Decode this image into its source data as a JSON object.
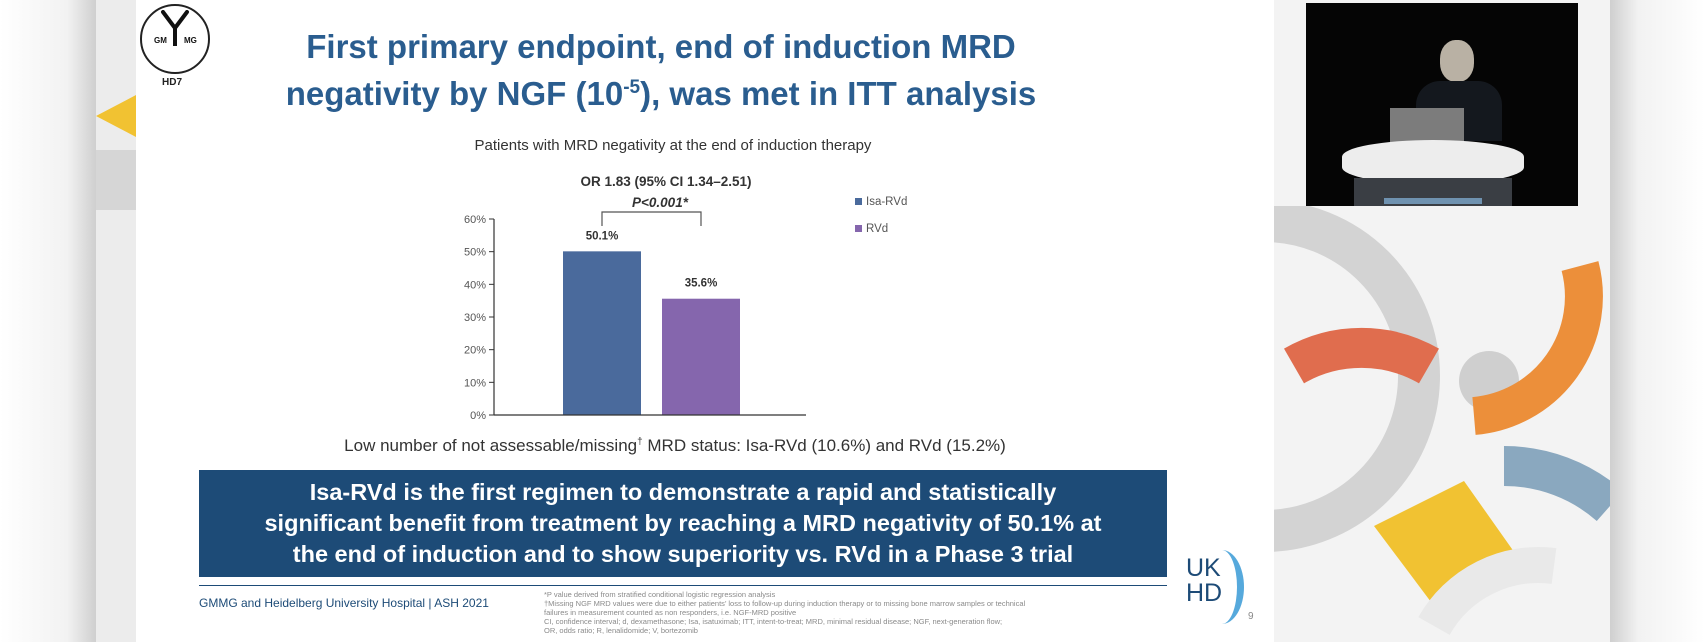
{
  "slide": {
    "logo_left_letters": "GM",
    "logo_right_letters": "MG",
    "logo_caption": "HD7",
    "title_line1": "First primary endpoint, end of induction MRD",
    "title_line2_a": "negativity by NGF (10",
    "title_exponent": "-5",
    "title_line2_b": "), was met in ITT analysis",
    "note_a": "Low number of not assessable/missing",
    "note_dagger": "†",
    "note_b": " MRD status: Isa-RVd (10.6%) and RVd (15.2%)",
    "banner_line1": "Isa-RVd is the first regimen to demonstrate a rapid and statistically",
    "banner_line2": "significant benefit from treatment by reaching a MRD negativity of 50.1% at",
    "banner_line3": "the end of induction and to show superiority vs. RVd in a Phase 3 trial",
    "footer_left": "GMMG and Heidelberg University Hospital | ASH 2021",
    "footnote1": "*P value derived from stratified conditional logistic regression analysis",
    "footnote2": "†Missing NGF MRD values were due to either patients’ loss to follow-up during induction therapy or to missing bone marrow samples or technical",
    "footnote3": "failures in measurement counted as non responders, i.e. NGF-MRD positive",
    "footnote4": "CI, confidence interval; d, dexamethasone; Isa, isatuximab; ITT, intent-to-treat; MRD, minimal residual disease; NGF, next-generation flow;",
    "footnote5": "OR, odds ratio; R, lenalidomide; V, bortezomib",
    "brand_uk": "UK",
    "brand_hd": "HD",
    "page_number": "9"
  },
  "chart_data": {
    "type": "bar",
    "title": "Patients with MRD negativity at the end of induction therapy",
    "categories": [
      "Isa-RVd",
      "RVd"
    ],
    "values": [
      50.1,
      35.6
    ],
    "data_labels": [
      "50.1%",
      "35.6%"
    ],
    "series": [
      {
        "name": "Isa-RVd",
        "value": 50.1,
        "color": "#4a6a9c"
      },
      {
        "name": "RVd",
        "value": 35.6,
        "color": "#8566ad"
      }
    ],
    "ylim": [
      0,
      60
    ],
    "yticks": [
      0,
      10,
      20,
      30,
      40,
      50,
      60
    ],
    "ytick_labels": [
      "0%",
      "10%",
      "20%",
      "30%",
      "40%",
      "50%",
      "60%"
    ],
    "annotation_or": "OR 1.83 (95% CI 1.34–2.51)",
    "annotation_p": "P<0.001*",
    "legend_position": "right",
    "grid": false
  }
}
